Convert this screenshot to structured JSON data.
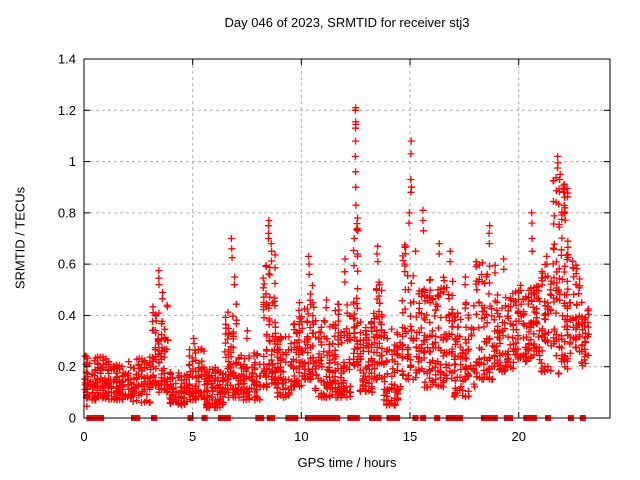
{
  "chart_data": {
    "type": "scatter",
    "title": "Day 046 of 2023, SRMTID for receiver stj3",
    "xlabel": "GPS time / hours",
    "ylabel": "SRMTID / TECUs",
    "xlim": [
      0,
      24.2
    ],
    "ylim": [
      0,
      1.4
    ],
    "xtick_values": [
      0,
      5,
      10,
      15,
      20
    ],
    "xtick_labels": [
      "0",
      "5",
      "10",
      "15",
      "20"
    ],
    "ytick_values": [
      0,
      0.2,
      0.4,
      0.6,
      0.8,
      1.0,
      1.2,
      1.4
    ],
    "ytick_labels": [
      "0",
      "0.2",
      "0.4",
      "0.6",
      "0.8",
      "1",
      "1.2",
      "1.4"
    ],
    "grid": true,
    "grid_color": "#b0b0b0",
    "border_color": "#000000",
    "marker": "plus",
    "zero_marker": "filled-square",
    "marker_color": "#ff0000",
    "seed": 46,
    "clusters": [
      [
        0.02,
        0.15,
        0.04,
        0.26,
        20,
        1.0
      ],
      [
        0.1,
        1.05,
        0.07,
        0.24,
        95,
        1.3
      ],
      [
        1.05,
        2.1,
        0.07,
        0.22,
        100,
        1.3
      ],
      [
        2.1,
        3.1,
        0.06,
        0.24,
        80,
        1.3
      ],
      [
        3.1,
        3.9,
        0.1,
        0.47,
        85,
        1.6
      ],
      [
        3.9,
        4.8,
        0.05,
        0.18,
        70,
        1.2
      ],
      [
        4.8,
        5.6,
        0.07,
        0.27,
        75,
        1.4
      ],
      [
        5.6,
        6.45,
        0.04,
        0.2,
        95,
        1.3
      ],
      [
        6.45,
        7.05,
        0.08,
        0.48,
        70,
        1.8
      ],
      [
        7.05,
        8.15,
        0.07,
        0.26,
        85,
        1.4
      ],
      [
        8.2,
        8.85,
        0.12,
        0.64,
        85,
        1.6
      ],
      [
        8.85,
        9.6,
        0.08,
        0.32,
        65,
        1.5
      ],
      [
        9.6,
        10.1,
        0.12,
        0.4,
        55,
        1.4
      ],
      [
        10.1,
        10.6,
        0.15,
        0.52,
        55,
        1.5
      ],
      [
        10.6,
        11.5,
        0.08,
        0.38,
        85,
        1.5
      ],
      [
        11.5,
        12.3,
        0.08,
        0.45,
        85,
        1.5
      ],
      [
        12.35,
        12.65,
        0.2,
        0.78,
        40,
        1.3
      ],
      [
        12.65,
        13.3,
        0.1,
        0.4,
        65,
        1.4
      ],
      [
        13.3,
        13.75,
        0.15,
        0.55,
        50,
        1.5
      ],
      [
        13.75,
        14.6,
        0.05,
        0.35,
        75,
        1.5
      ],
      [
        14.6,
        15.35,
        0.15,
        0.68,
        65,
        1.5
      ],
      [
        15.35,
        16.1,
        0.12,
        0.55,
        75,
        1.5
      ],
      [
        16.1,
        17.0,
        0.12,
        0.55,
        85,
        1.5
      ],
      [
        17.0,
        18.0,
        0.08,
        0.45,
        85,
        1.5
      ],
      [
        18.0,
        18.95,
        0.15,
        0.62,
        85,
        1.5
      ],
      [
        18.95,
        19.8,
        0.18,
        0.5,
        70,
        1.4
      ],
      [
        19.8,
        21.0,
        0.22,
        0.52,
        110,
        1.2
      ],
      [
        21.0,
        21.55,
        0.18,
        0.6,
        50,
        1.3
      ],
      [
        21.55,
        22.3,
        0.3,
        0.96,
        85,
        1.1
      ],
      [
        21.55,
        22.3,
        0.17,
        0.33,
        25,
        1.0
      ],
      [
        22.3,
        22.85,
        0.25,
        0.62,
        45,
        1.3
      ],
      [
        22.85,
        23.25,
        0.2,
        0.46,
        35,
        1.3
      ]
    ],
    "spikes": [
      [
        3.45,
        [
          0.575,
          0.545,
          0.52
        ]
      ],
      [
        3.6,
        [
          0.49,
          0.465
        ]
      ],
      [
        5.05,
        [
          0.31,
          0.29
        ]
      ],
      [
        6.8,
        [
          0.7,
          0.66,
          0.625
        ]
      ],
      [
        6.92,
        [
          0.55,
          0.52
        ]
      ],
      [
        7.5,
        [
          0.34,
          0.31
        ]
      ],
      [
        8.5,
        [
          0.77,
          0.75,
          0.72,
          0.7
        ]
      ],
      [
        8.62,
        [
          0.68,
          0.65
        ]
      ],
      [
        9.9,
        [
          0.45,
          0.42
        ]
      ],
      [
        10.35,
        [
          0.63,
          0.6,
          0.56
        ]
      ],
      [
        11.15,
        [
          0.46,
          0.43
        ]
      ],
      [
        12.0,
        [
          0.62,
          0.57,
          0.53
        ]
      ],
      [
        12.5,
        [
          1.21,
          1.2,
          1.155,
          1.145,
          1.13,
          1.08,
          1.02,
          0.96,
          0.9,
          0.83
        ]
      ],
      [
        12.58,
        [
          0.78,
          0.73
        ]
      ],
      [
        13.5,
        [
          0.67,
          0.64,
          0.61
        ]
      ],
      [
        14.95,
        [
          0.8,
          0.76
        ]
      ],
      [
        15.05,
        [
          1.08,
          1.03,
          0.93,
          0.9,
          0.88
        ]
      ],
      [
        15.6,
        [
          0.81,
          0.77,
          0.73
        ]
      ],
      [
        16.35,
        [
          0.68,
          0.64
        ]
      ],
      [
        16.85,
        [
          0.65,
          0.61
        ]
      ],
      [
        17.55,
        [
          0.55,
          0.52
        ]
      ],
      [
        18.65,
        [
          0.75,
          0.72,
          0.68
        ]
      ],
      [
        19.3,
        [
          0.62,
          0.58
        ]
      ],
      [
        20.6,
        [
          0.8,
          0.76,
          0.7,
          0.65
        ]
      ],
      [
        21.3,
        [
          0.63,
          0.6
        ]
      ],
      [
        21.8,
        [
          1.02,
          0.995,
          0.975
        ]
      ],
      [
        21.9,
        [
          0.95,
          0.93
        ]
      ],
      [
        22.05,
        [
          0.905,
          0.88
        ]
      ]
    ],
    "zero_marker_x": [
      0.25,
      0.38,
      0.62,
      0.78,
      2.3,
      2.45,
      3.22,
      4.9,
      5.55,
      6.3,
      6.42,
      6.52,
      6.62,
      8.02,
      8.15,
      8.55,
      8.65,
      9.4,
      9.5,
      9.72,
      10.3,
      10.45,
      10.62,
      10.78,
      10.95,
      11.08,
      11.35,
      11.5,
      11.65,
      12.25,
      12.4,
      12.55,
      13.25,
      13.4,
      13.55,
      14.05,
      14.18,
      14.4,
      15.25,
      15.6,
      16.25,
      16.78,
      16.92,
      17.05,
      17.18,
      17.3,
      18.4,
      18.5,
      18.62,
      18.9,
      19.45,
      19.6,
      20.35,
      20.48,
      20.7,
      21.35,
      22.4,
      22.95
    ]
  }
}
